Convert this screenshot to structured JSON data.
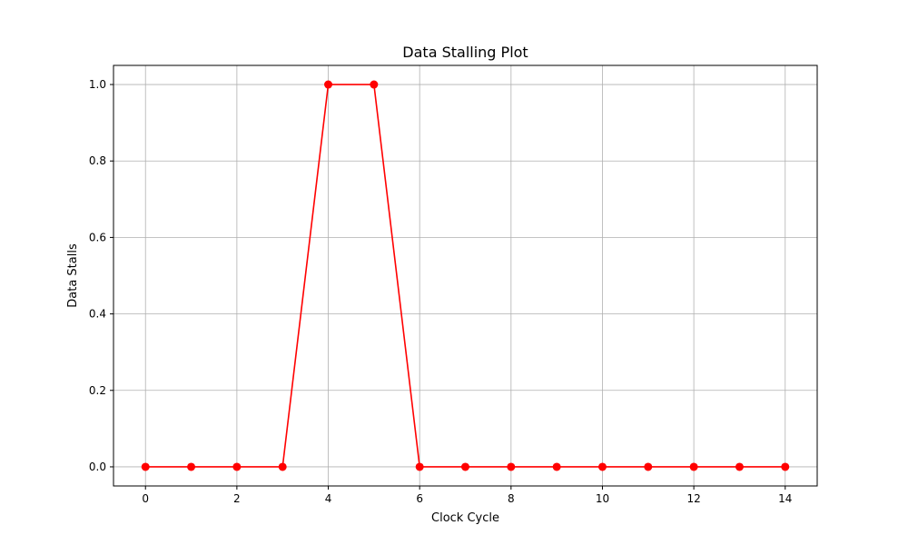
{
  "chart_data": {
    "type": "line",
    "title": "Data Stalling Plot",
    "xlabel": "Clock Cycle",
    "ylabel": "Data Stalls",
    "x": [
      0,
      1,
      2,
      3,
      4,
      5,
      6,
      7,
      8,
      9,
      10,
      11,
      12,
      13,
      14
    ],
    "series": [
      {
        "values": [
          0,
          0,
          0,
          0,
          1,
          1,
          0,
          0,
          0,
          0,
          0,
          0,
          0,
          0,
          0
        ],
        "color": "#ff0000",
        "marker": "circle"
      }
    ],
    "xlim": [
      -0.7,
      14.7
    ],
    "ylim": [
      -0.05,
      1.05
    ],
    "xticks": [
      0,
      2,
      4,
      6,
      8,
      10,
      12,
      14
    ],
    "xtick_labels": [
      "0",
      "2",
      "4",
      "6",
      "8",
      "10",
      "12",
      "14"
    ],
    "yticks": [
      0.0,
      0.2,
      0.4,
      0.6,
      0.8,
      1.0
    ],
    "ytick_labels": [
      "0.0",
      "0.2",
      "0.4",
      "0.6",
      "0.8",
      "1.0"
    ],
    "grid": true,
    "grid_color": "#b0b0b0",
    "legend": "none"
  }
}
